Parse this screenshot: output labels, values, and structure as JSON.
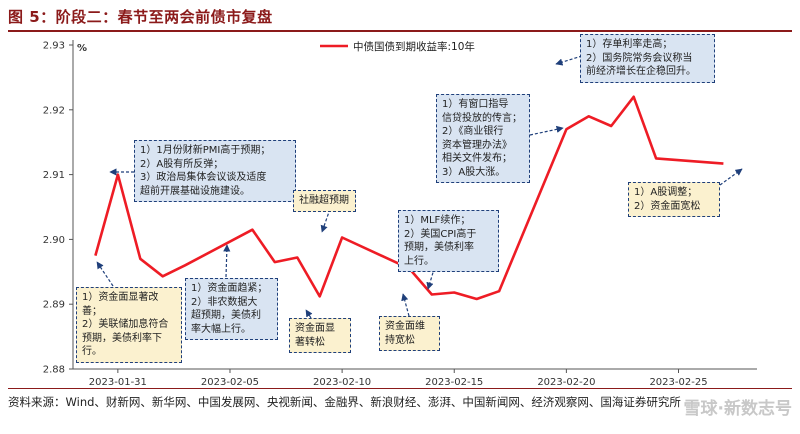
{
  "title": "图 5：阶段二：春节至两会前债市复盘",
  "source": "资料来源：Wind、财新网、新华网、中国发展网、央视新闻、金融界、新浪财经、澎湃、中国新闻网、经济观察网、国海证券研究所",
  "watermark": "雪球·新数志号",
  "colors": {
    "series": "#ee1c25",
    "annotation_border": "#1f3f7a",
    "blue_box": "#d9e4f2",
    "yellow_box": "#fbf1cf",
    "title": "#8b1a1a"
  },
  "chart_data": {
    "type": "line",
    "ylabel": "%",
    "ylim": [
      2.88,
      2.93
    ],
    "yticks": [
      "2.88",
      "2.89",
      "2.90",
      "2.91",
      "2.92",
      "2.93"
    ],
    "xticks": [
      "2023-01-31",
      "2023-02-05",
      "2023-02-10",
      "2023-02-15",
      "2023-02-20",
      "2023-02-25"
    ],
    "legend": "top-center",
    "series": [
      {
        "name": "中债国债到期收益率:10年",
        "x": [
          "2023-01-30",
          "2023-01-31",
          "2023-02-01",
          "2023-02-02",
          "2023-02-03",
          "2023-02-06",
          "2023-02-07",
          "2023-02-08",
          "2023-02-09",
          "2023-02-10",
          "2023-02-13",
          "2023-02-14",
          "2023-02-15",
          "2023-02-16",
          "2023-02-17",
          "2023-02-20",
          "2023-02-21",
          "2023-02-22",
          "2023-02-23",
          "2023-02-24",
          "2023-02-27"
        ],
        "values": [
          2.8975,
          2.91,
          2.897,
          2.8943,
          2.896,
          2.9015,
          2.8965,
          2.8972,
          2.8912,
          2.9003,
          2.8955,
          2.8915,
          2.8918,
          2.8908,
          2.892,
          2.917,
          2.919,
          2.9175,
          2.922,
          2.9125,
          2.9117
        ]
      }
    ]
  },
  "annotations": [
    {
      "id": "ann-pmi",
      "style": "blue",
      "text": "1）1月份财新PMI高于预期；\n2）A股有所反弹；\n3）政治局集体会议谈及适度\n超前开展基础设施建设。"
    },
    {
      "id": "ann-social",
      "style": "yellow",
      "text": "社融超预期"
    },
    {
      "id": "ann-mlf",
      "style": "blue",
      "text": "1）MLF续作；\n2）美国CPI高于\n预期，美债利率\n上行。"
    },
    {
      "id": "ann-window",
      "style": "blue",
      "text": "1）有窗口指导\n信贷投放的传言；\n2）《商业银行\n资本管理办法》\n相关文件发布；\n3）A股大涨。"
    },
    {
      "id": "ann-deposit",
      "style": "blue",
      "text": "1）存单利率走高；\n2）国务院常务会议称当\n前经济增长在企稳回升。"
    },
    {
      "id": "ann-funds-improve",
      "style": "yellow",
      "text": "1）资金面显著改善；\n2）美联储加息符合\n预期，美债利率下\n行。"
    },
    {
      "id": "ann-nonfarm",
      "style": "blue",
      "text": "1）资金面趋紧；\n2）非农数据大\n超预期，美债利\n率大幅上行。"
    },
    {
      "id": "ann-funds-loose",
      "style": "yellow",
      "text": "资金面显\n著转松"
    },
    {
      "id": "ann-funds-maintain",
      "style": "yellow",
      "text": "资金面维\n持宽松"
    },
    {
      "id": "ann-stock-adjust",
      "style": "yellow",
      "text": "1）A股调整；\n2）资金面宽松"
    }
  ]
}
